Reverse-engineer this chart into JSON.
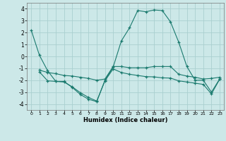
{
  "x": [
    0,
    1,
    2,
    3,
    4,
    5,
    6,
    7,
    8,
    9,
    10,
    11,
    12,
    13,
    14,
    15,
    16,
    17,
    18,
    19,
    20,
    21,
    22,
    23
  ],
  "line1": [
    2.2,
    0.1,
    -1.2,
    -2.1,
    -2.1,
    -2.6,
    -3.2,
    -3.6,
    -3.8,
    -2.0,
    -0.9,
    1.3,
    2.4,
    3.85,
    3.75,
    3.9,
    3.85,
    2.9,
    1.2,
    -0.85,
    -2.0,
    -2.0,
    -3.0,
    -1.9
  ],
  "line2": [
    null,
    -1.15,
    -1.35,
    -1.45,
    -1.6,
    -1.65,
    -1.75,
    -1.85,
    -2.0,
    -1.9,
    -0.85,
    -0.85,
    -0.95,
    -0.95,
    -0.95,
    -0.85,
    -0.85,
    -0.85,
    -1.5,
    -1.65,
    -1.75,
    -1.9,
    -1.85,
    -1.75
  ],
  "line3": [
    null,
    -1.3,
    -2.05,
    -2.1,
    -2.15,
    -2.55,
    -3.05,
    -3.45,
    -3.75,
    -2.05,
    -1.05,
    -1.35,
    -1.5,
    -1.6,
    -1.7,
    -1.72,
    -1.8,
    -1.82,
    -2.05,
    -2.15,
    -2.25,
    -2.35,
    -3.15,
    -1.92
  ],
  "color": "#1a7a6e",
  "bg_color": "#cce8e8",
  "grid_color": "#aad0d0",
  "xlabel": "Humidex (Indice chaleur)",
  "ylim": [
    -4.5,
    4.5
  ],
  "xlim": [
    -0.5,
    23.5
  ],
  "yticks": [
    -4,
    -3,
    -2,
    -1,
    0,
    1,
    2,
    3,
    4
  ],
  "xticks": [
    0,
    1,
    2,
    3,
    4,
    5,
    6,
    7,
    8,
    9,
    10,
    11,
    12,
    13,
    14,
    15,
    16,
    17,
    18,
    19,
    20,
    21,
    22,
    23
  ]
}
